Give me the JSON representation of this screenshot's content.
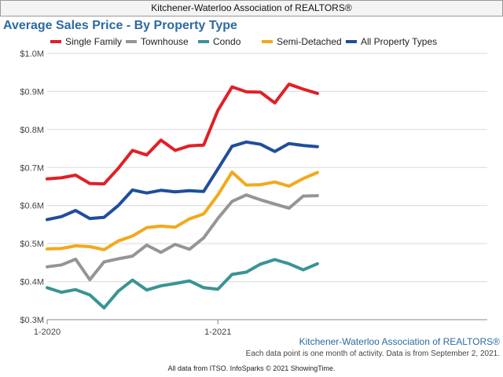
{
  "header": {
    "title": "Kitchener-Waterloo Association of REALTORS®"
  },
  "chart_data": {
    "type": "line",
    "title": "Average Sales Price - By Property Type",
    "xlabel": "",
    "ylabel": "",
    "x_ticks": [
      "1-2020",
      "1-2021"
    ],
    "y_ticks": [
      "$0.3M",
      "$0.4M",
      "$0.5M",
      "$0.6M",
      "$0.7M",
      "$0.8M",
      "$0.9M",
      "$1.0M"
    ],
    "ylim": [
      0.3,
      1.0
    ],
    "grid": true,
    "legend_position": "top",
    "x": [
      "2020-01",
      "2020-02",
      "2020-03",
      "2020-04",
      "2020-05",
      "2020-06",
      "2020-07",
      "2020-08",
      "2020-09",
      "2020-10",
      "2020-11",
      "2020-12",
      "2021-01",
      "2021-02",
      "2021-03",
      "2021-04",
      "2021-05",
      "2021-06",
      "2021-07",
      "2021-08"
    ],
    "series": [
      {
        "name": "Single Family",
        "color": "#e02027",
        "values": [
          0.67,
          0.673,
          0.68,
          0.658,
          0.657,
          0.698,
          0.745,
          0.733,
          0.772,
          0.745,
          0.757,
          0.759,
          0.85,
          0.912,
          0.899,
          0.898,
          0.87,
          0.919,
          0.906,
          0.895
        ]
      },
      {
        "name": "Townhouse",
        "color": "#959595",
        "values": [
          0.439,
          0.444,
          0.459,
          0.405,
          0.452,
          0.46,
          0.467,
          0.496,
          0.477,
          0.498,
          0.485,
          0.515,
          0.566,
          0.611,
          0.628,
          0.615,
          0.604,
          0.593,
          0.625,
          0.626
        ]
      },
      {
        "name": "Condo",
        "color": "#3a9494",
        "values": [
          0.384,
          0.372,
          0.379,
          0.365,
          0.331,
          0.375,
          0.404,
          0.378,
          0.389,
          0.395,
          0.402,
          0.384,
          0.38,
          0.419,
          0.425,
          0.446,
          0.458,
          0.447,
          0.431,
          0.447
        ]
      },
      {
        "name": "Semi-Detached",
        "color": "#f2a91b",
        "values": [
          0.486,
          0.487,
          0.494,
          0.492,
          0.484,
          0.507,
          0.52,
          0.542,
          0.546,
          0.543,
          0.565,
          0.578,
          0.628,
          0.688,
          0.654,
          0.655,
          0.662,
          0.651,
          0.671,
          0.687
        ]
      },
      {
        "name": "All Property Types",
        "color": "#1f4e9c",
        "values": [
          0.563,
          0.571,
          0.587,
          0.566,
          0.569,
          0.6,
          0.641,
          0.633,
          0.64,
          0.636,
          0.639,
          0.637,
          0.696,
          0.756,
          0.767,
          0.761,
          0.742,
          0.763,
          0.758,
          0.755
        ]
      }
    ]
  },
  "watermark": "Kitchener-Waterloo Association of REALTORS®",
  "note": "Each data point is one month of activity. Data is from September 2, 2021.",
  "footer": "All data from ITSO. InfoSparks © 2021 ShowingTime."
}
